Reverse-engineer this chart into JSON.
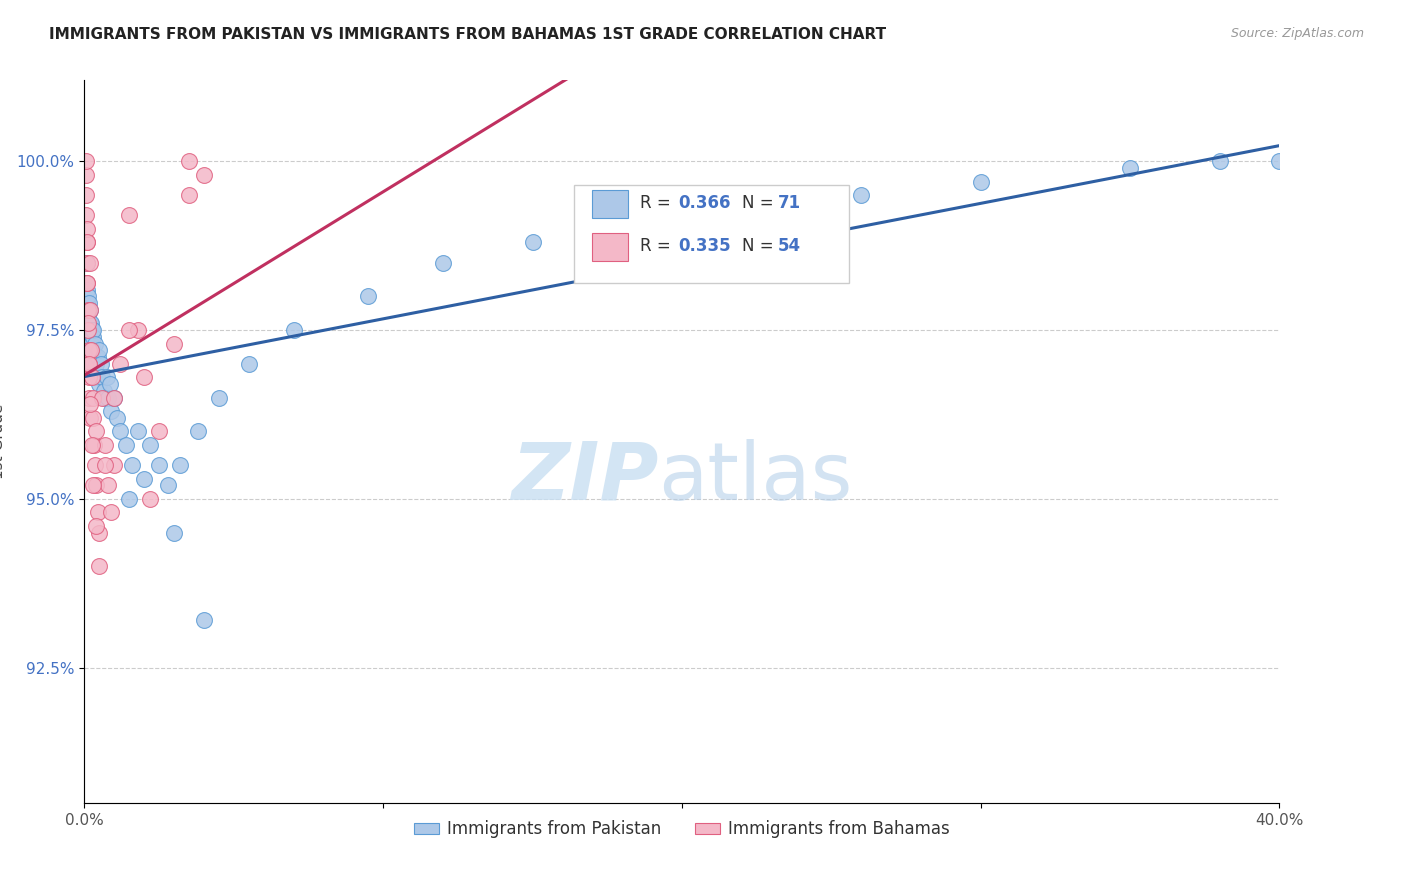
{
  "title": "IMMIGRANTS FROM PAKISTAN VS IMMIGRANTS FROM BAHAMAS 1ST GRADE CORRELATION CHART",
  "source": "Source: ZipAtlas.com",
  "ylabel": "1st Grade",
  "xlim": [
    0.0,
    40.0
  ],
  "ylim": [
    90.5,
    101.2
  ],
  "yticks": [
    92.5,
    95.0,
    97.5,
    100.0
  ],
  "yticklabels": [
    "92.5%",
    "95.0%",
    "97.5%",
    "100.0%"
  ],
  "pakistan_color": "#adc8e8",
  "pakistan_edge": "#5b9bd5",
  "bahamas_color": "#f4b8c8",
  "bahamas_edge": "#e06080",
  "trendline_pakistan": "#2e5fa3",
  "trendline_bahamas": "#c03060",
  "pakistan_x": [
    0.05,
    0.07,
    0.08,
    0.09,
    0.1,
    0.1,
    0.1,
    0.12,
    0.12,
    0.13,
    0.14,
    0.15,
    0.15,
    0.16,
    0.17,
    0.18,
    0.18,
    0.2,
    0.2,
    0.22,
    0.22,
    0.25,
    0.25,
    0.27,
    0.28,
    0.3,
    0.3,
    0.32,
    0.35,
    0.38,
    0.4,
    0.42,
    0.45,
    0.48,
    0.5,
    0.55,
    0.6,
    0.65,
    0.7,
    0.75,
    0.8,
    0.85,
    0.9,
    1.0,
    1.1,
    1.2,
    1.4,
    1.6,
    1.8,
    2.0,
    2.2,
    2.5,
    2.8,
    3.2,
    3.8,
    4.5,
    5.5,
    7.0,
    9.5,
    12.0,
    15.0,
    18.0,
    22.0,
    26.0,
    30.0,
    35.0,
    38.0,
    40.0,
    1.5,
    3.0,
    4.0
  ],
  "pakistan_y": [
    97.8,
    98.2,
    98.5,
    97.4,
    97.9,
    98.1,
    97.6,
    98.0,
    97.3,
    97.7,
    97.5,
    97.8,
    97.2,
    97.9,
    97.4,
    97.6,
    97.1,
    97.5,
    97.8,
    97.3,
    97.6,
    97.2,
    97.5,
    97.0,
    97.4,
    97.2,
    97.5,
    97.0,
    97.3,
    97.1,
    97.0,
    96.8,
    97.1,
    96.7,
    97.2,
    97.0,
    96.8,
    96.6,
    96.5,
    96.8,
    96.5,
    96.7,
    96.3,
    96.5,
    96.2,
    96.0,
    95.8,
    95.5,
    96.0,
    95.3,
    95.8,
    95.5,
    95.2,
    95.5,
    96.0,
    96.5,
    97.0,
    97.5,
    98.0,
    98.5,
    98.8,
    99.0,
    99.3,
    99.5,
    99.7,
    99.9,
    100.0,
    100.0,
    95.0,
    94.5,
    93.2
  ],
  "bahamas_x": [
    0.05,
    0.05,
    0.05,
    0.07,
    0.08,
    0.09,
    0.1,
    0.1,
    0.12,
    0.13,
    0.14,
    0.15,
    0.16,
    0.17,
    0.18,
    0.2,
    0.2,
    0.22,
    0.25,
    0.28,
    0.3,
    0.32,
    0.35,
    0.38,
    0.4,
    0.45,
    0.5,
    0.6,
    0.7,
    0.8,
    0.9,
    1.0,
    1.2,
    1.5,
    1.8,
    2.0,
    2.5,
    3.0,
    3.5,
    4.0,
    0.08,
    0.1,
    0.12,
    0.15,
    0.2,
    0.25,
    0.3,
    0.4,
    0.5,
    0.7,
    1.0,
    1.5,
    2.2,
    3.5
  ],
  "bahamas_y": [
    99.8,
    100.0,
    99.5,
    99.2,
    98.8,
    98.5,
    98.2,
    99.0,
    97.8,
    97.5,
    97.2,
    97.0,
    96.8,
    96.5,
    96.2,
    98.5,
    97.8,
    97.2,
    96.8,
    96.5,
    96.2,
    95.8,
    95.5,
    96.0,
    95.2,
    94.8,
    94.5,
    96.5,
    95.8,
    95.2,
    94.8,
    95.5,
    97.0,
    99.2,
    97.5,
    96.8,
    96.0,
    97.3,
    99.5,
    99.8,
    98.8,
    98.2,
    97.6,
    97.0,
    96.4,
    95.8,
    95.2,
    94.6,
    94.0,
    95.5,
    96.5,
    97.5,
    95.0,
    100.0
  ]
}
